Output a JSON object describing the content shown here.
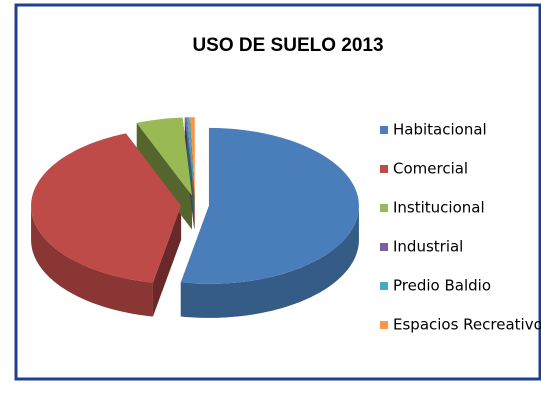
{
  "chart_data": {
    "type": "pie",
    "title": "USO DE SUELO 2013",
    "categories": [
      "Habitacional",
      "Comercial",
      "Institucional",
      "Industrial",
      "Predio Baldio",
      "Espacios Recreativos"
    ],
    "values": [
      53,
      41,
      5,
      0.2,
      0.3,
      0.5
    ],
    "colors": [
      "#4a7ebb",
      "#be4b48",
      "#98b954",
      "#7d60a0",
      "#46aac5",
      "#f79646"
    ],
    "legend": "right"
  }
}
